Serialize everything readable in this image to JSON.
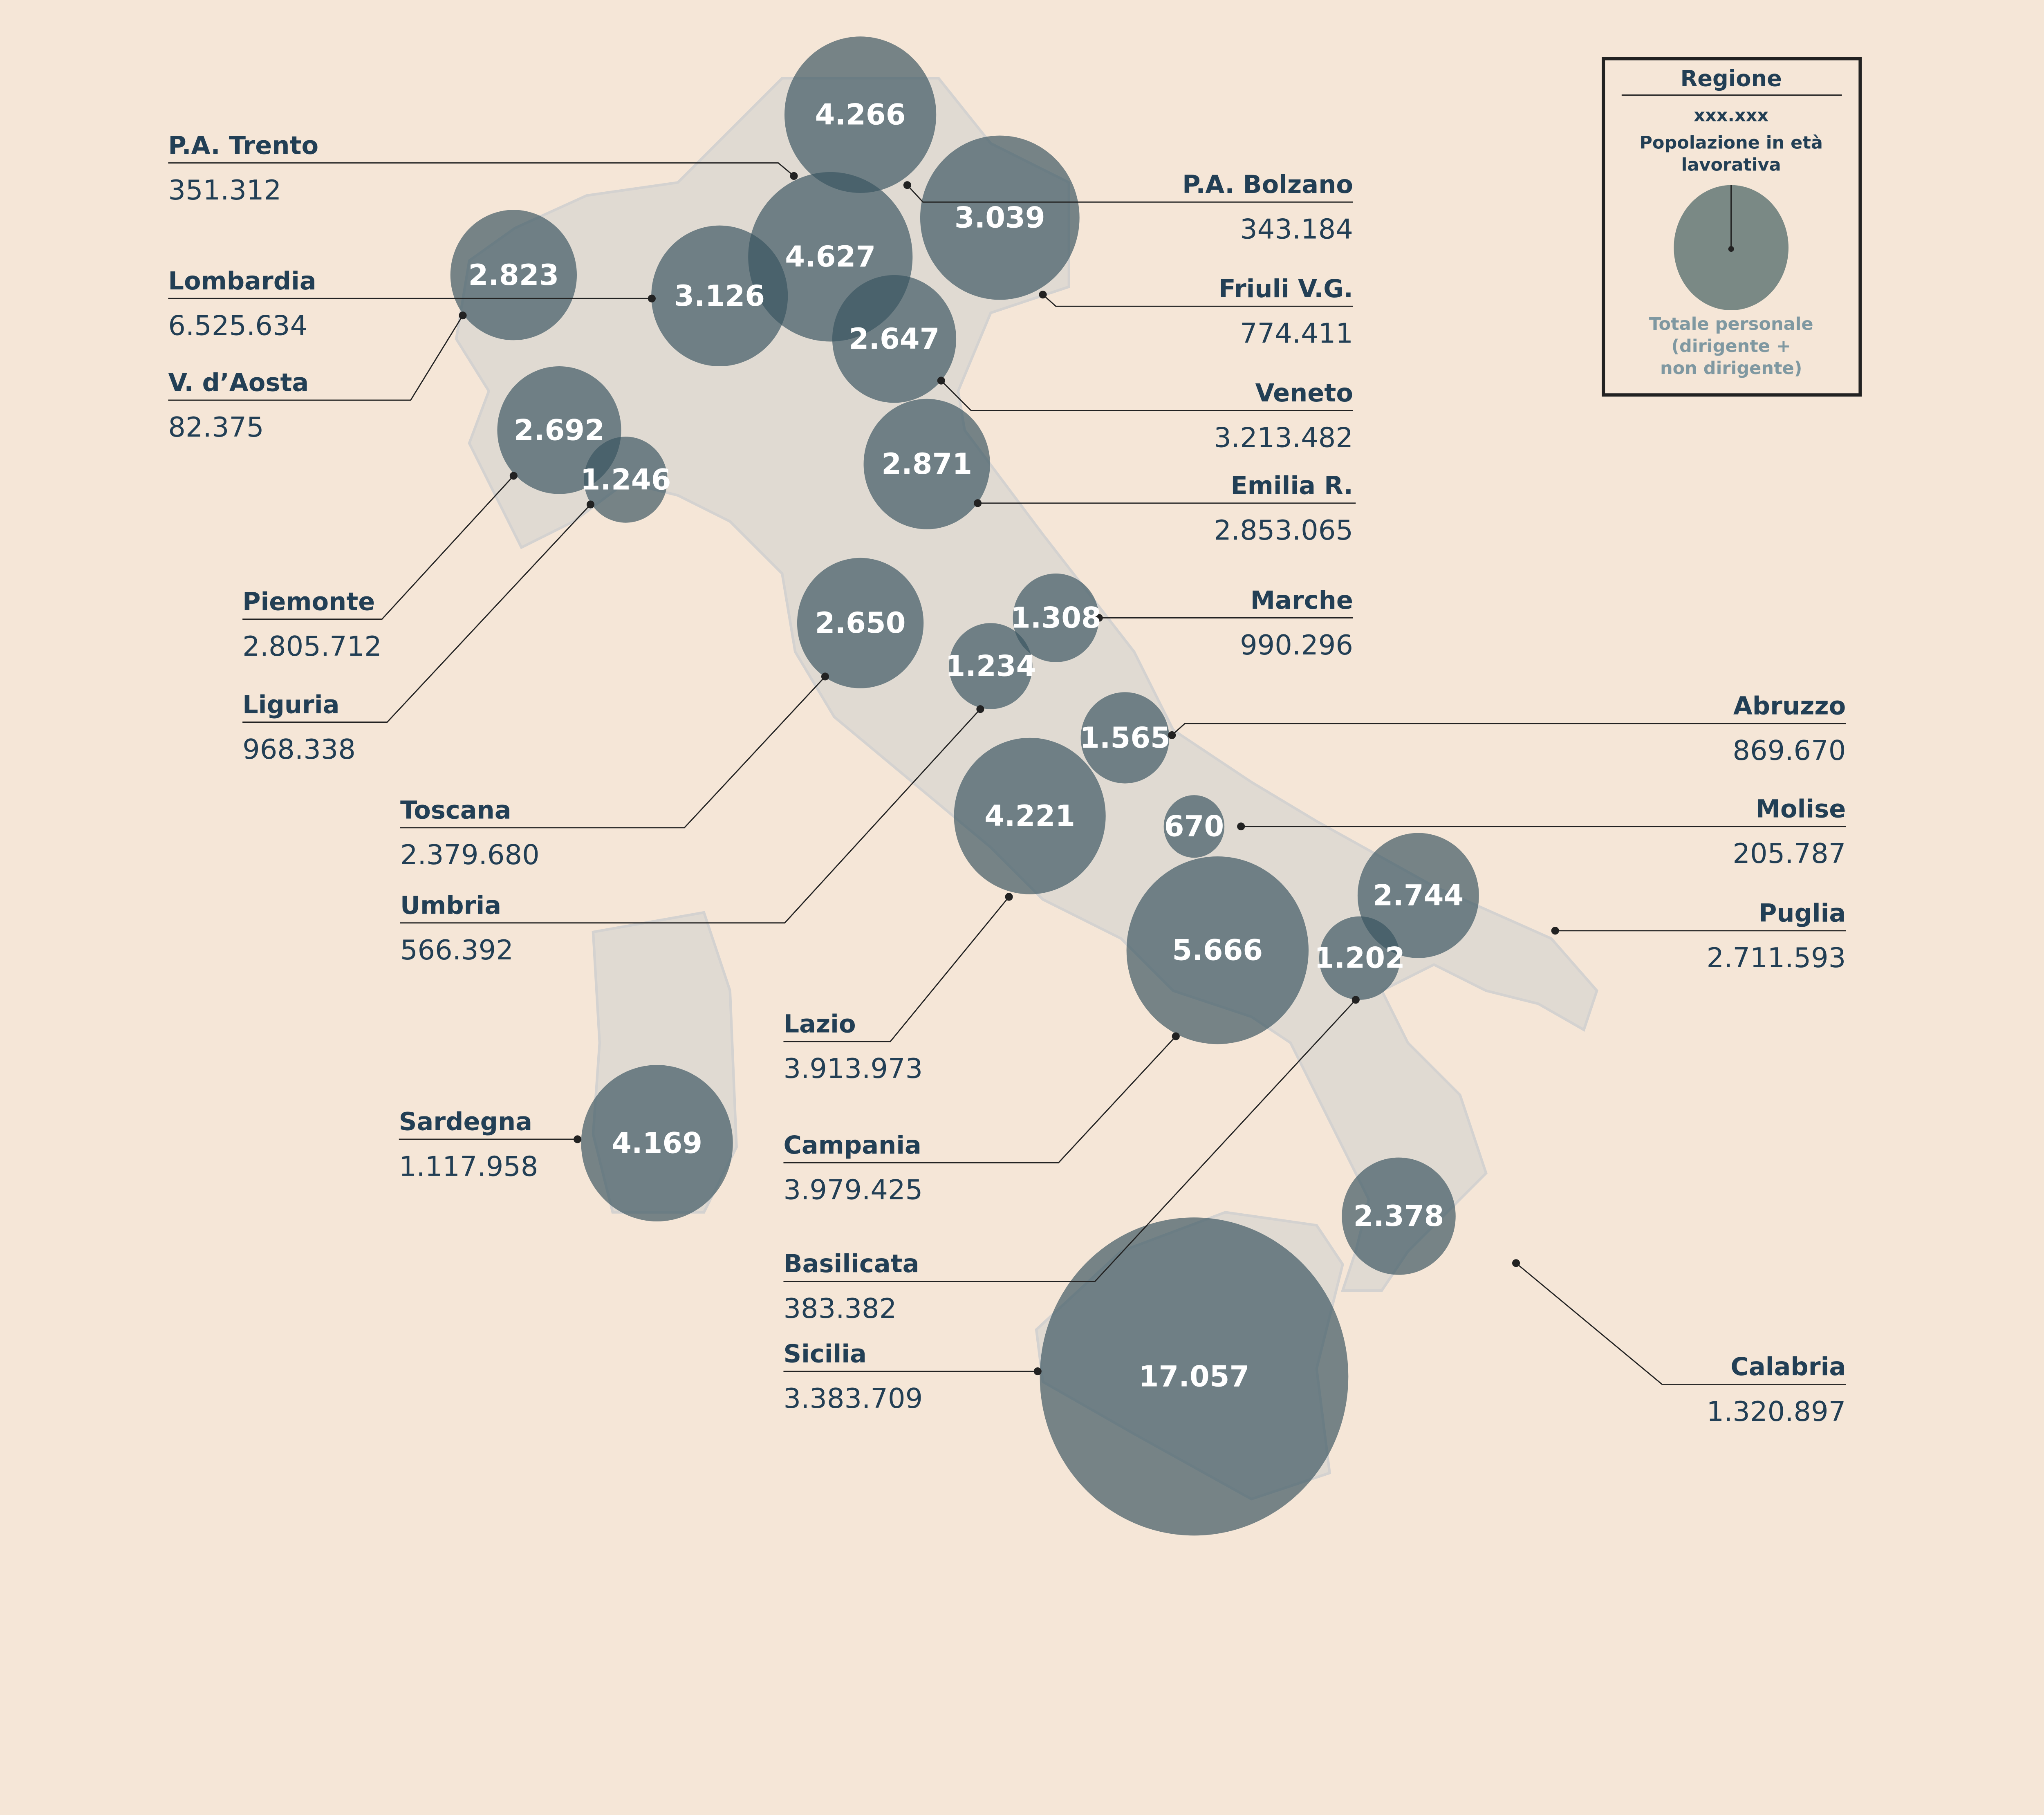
{
  "legend": {
    "title": "Regione",
    "sample_value": "xxx.xxx",
    "pop_label_1": "Popolazione in età",
    "pop_label_2": "lavorativa",
    "staff_label_1": "Totale personale",
    "staff_label_2": "(dirigente +",
    "staff_label_3": "non dirigente)"
  },
  "colors": {
    "background": "#f5e6d7",
    "bubble": "#3a5460",
    "land": "#e0dad2",
    "text": "#223f55",
    "legend_grey": "#7f98a1"
  },
  "regions": [
    {
      "name": "P.A. Trento",
      "popolazione": "351.312",
      "personale": "4.627"
    },
    {
      "name": "P.A. Bolzano",
      "popolazione": "343.184",
      "personale": "4.266"
    },
    {
      "name": "Lombardia",
      "popolazione": "6.525.634",
      "personale": "3.126"
    },
    {
      "name": "V. d’Aosta",
      "popolazione": "82.375",
      "personale": "2.823"
    },
    {
      "name": "Friuli V.G.",
      "popolazione": "774.411",
      "personale": "3.039"
    },
    {
      "name": "Veneto",
      "popolazione": "3.213.482",
      "personale": "2.647"
    },
    {
      "name": "Emilia R.",
      "popolazione": "2.853.065",
      "personale": "2.871"
    },
    {
      "name": "Piemonte",
      "popolazione": "2.805.712",
      "personale": "2.692"
    },
    {
      "name": "Liguria",
      "popolazione": "968.338",
      "personale": "1.246"
    },
    {
      "name": "Marche",
      "popolazione": "990.296",
      "personale": "1.308"
    },
    {
      "name": "Toscana",
      "popolazione": "2.379.680",
      "personale": "2.650"
    },
    {
      "name": "Umbria",
      "popolazione": "566.392",
      "personale": "1.234"
    },
    {
      "name": "Abruzzo",
      "popolazione": "869.670",
      "personale": "1.565"
    },
    {
      "name": "Molise",
      "popolazione": "205.787",
      "personale": "670"
    },
    {
      "name": "Puglia",
      "popolazione": "2.711.593",
      "personale": "2.744"
    },
    {
      "name": "Lazio",
      "popolazione": "3.913.973",
      "personale": "4.221"
    },
    {
      "name": "Campania",
      "popolazione": "3.979.425",
      "personale": "5.666"
    },
    {
      "name": "Basilicata",
      "popolazione": "383.382",
      "personale": "1.202"
    },
    {
      "name": "Sicilia",
      "popolazione": "3.383.709",
      "personale": "17.057"
    },
    {
      "name": "Sardegna",
      "popolazione": "1.117.958",
      "personale": "4.169"
    },
    {
      "name": "Calabria",
      "popolazione": "1.320.897",
      "personale": "2.378"
    }
  ]
}
